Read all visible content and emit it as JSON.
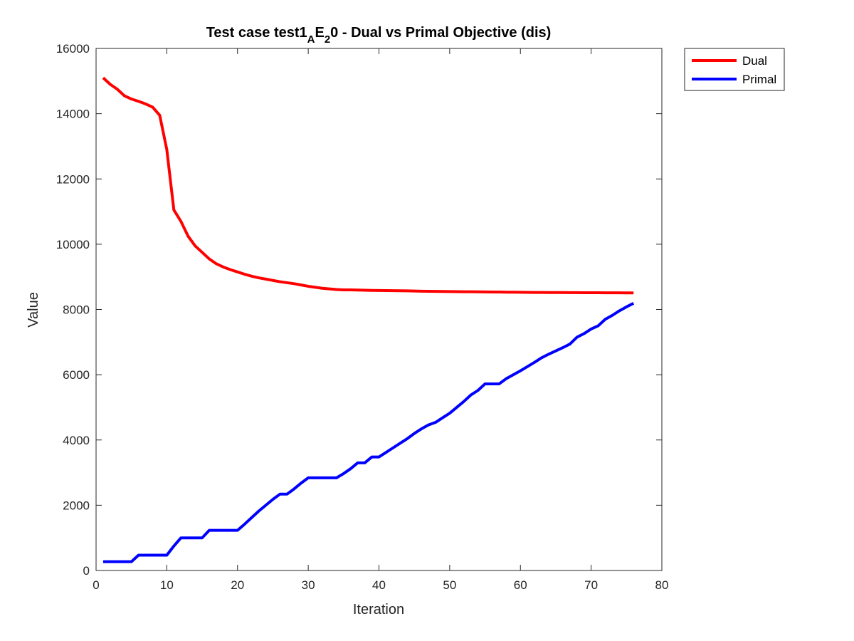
{
  "chart_data": {
    "type": "line",
    "title_parts": {
      "prefix": "Test case test1",
      "sub1": "A",
      "mid": "E",
      "sub2": "2",
      "suffix": "0 - Dual vs Primal Objective (dis)"
    },
    "xlabel": "Iteration",
    "ylabel": "Value",
    "xlim": [
      0,
      80
    ],
    "ylim": [
      0,
      16000
    ],
    "xticks": [
      "0",
      "10",
      "20",
      "30",
      "40",
      "50",
      "60",
      "70",
      "80"
    ],
    "yticks": [
      "0",
      "2000",
      "4000",
      "6000",
      "8000",
      "10000",
      "12000",
      "14000",
      "16000"
    ],
    "legend_position": "outside-top-right",
    "series": [
      {
        "name": "Dual",
        "color": "#ff0000",
        "x": [
          1,
          2,
          3,
          4,
          5,
          6,
          7,
          8,
          9,
          10,
          11,
          12,
          13,
          14,
          15,
          16,
          17,
          18,
          19,
          20,
          21,
          22,
          23,
          24,
          25,
          26,
          27,
          28,
          29,
          30,
          31,
          32,
          33,
          34,
          35,
          36,
          37,
          38,
          39,
          40,
          41,
          42,
          43,
          44,
          45,
          46,
          47,
          48,
          49,
          50,
          51,
          52,
          53,
          54,
          55,
          56,
          57,
          58,
          59,
          60,
          61,
          62,
          63,
          64,
          65,
          66,
          67,
          68,
          69,
          70,
          71,
          72,
          73,
          74,
          75,
          76
        ],
        "values": [
          15100,
          14900,
          14750,
          14550,
          14450,
          14380,
          14300,
          14200,
          13950,
          12900,
          11050,
          10700,
          10250,
          9950,
          9750,
          9550,
          9400,
          9300,
          9220,
          9150,
          9080,
          9020,
          8970,
          8930,
          8890,
          8850,
          8820,
          8790,
          8750,
          8710,
          8680,
          8650,
          8630,
          8610,
          8600,
          8600,
          8595,
          8590,
          8585,
          8580,
          8578,
          8576,
          8574,
          8570,
          8565,
          8560,
          8558,
          8555,
          8550,
          8548,
          8546,
          8544,
          8542,
          8540,
          8538,
          8536,
          8534,
          8530,
          8528,
          8526,
          8524,
          8522,
          8520,
          8519,
          8518,
          8517,
          8516,
          8515,
          8514,
          8513,
          8512,
          8511,
          8510,
          8509,
          8508,
          8507
        ]
      },
      {
        "name": "Primal",
        "color": "#0000ff",
        "x": [
          1,
          2,
          3,
          4,
          5,
          6,
          7,
          8,
          9,
          10,
          11,
          12,
          13,
          14,
          15,
          16,
          17,
          18,
          19,
          20,
          21,
          22,
          23,
          24,
          25,
          26,
          27,
          28,
          29,
          30,
          31,
          32,
          33,
          34,
          35,
          36,
          37,
          38,
          39,
          40,
          41,
          42,
          43,
          44,
          45,
          46,
          47,
          48,
          49,
          50,
          51,
          52,
          53,
          54,
          55,
          56,
          57,
          58,
          59,
          60,
          61,
          62,
          63,
          64,
          65,
          66,
          67,
          68,
          69,
          70,
          71,
          72,
          73,
          74,
          75,
          76
        ],
        "values": [
          270,
          270,
          270,
          270,
          270,
          470,
          470,
          470,
          470,
          470,
          750,
          1000,
          1000,
          1000,
          1000,
          1230,
          1230,
          1230,
          1230,
          1230,
          1420,
          1620,
          1820,
          2000,
          2180,
          2340,
          2340,
          2500,
          2680,
          2840,
          2840,
          2840,
          2840,
          2840,
          2970,
          3120,
          3300,
          3300,
          3480,
          3480,
          3620,
          3760,
          3900,
          4040,
          4200,
          4340,
          4460,
          4540,
          4680,
          4820,
          5000,
          5180,
          5380,
          5520,
          5720,
          5720,
          5720,
          5880,
          6000,
          6120,
          6250,
          6380,
          6520,
          6630,
          6730,
          6830,
          6940,
          7150,
          7260,
          7400,
          7500,
          7700,
          7820,
          7960,
          8080,
          8190
        ]
      }
    ]
  }
}
